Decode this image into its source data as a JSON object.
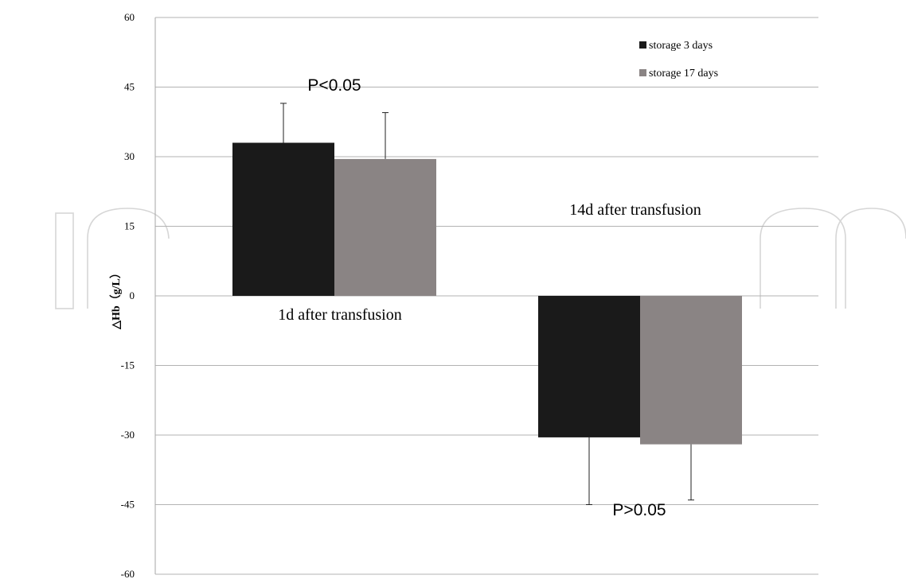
{
  "chart_data": {
    "type": "bar",
    "ylabel": "△Hb（g/L）",
    "ylim": [
      -60,
      60
    ],
    "yticks": [
      60,
      45,
      30,
      15,
      0,
      -15,
      -30,
      -45,
      -60
    ],
    "grid": true,
    "legend_position": "top-right",
    "categories": [
      "1d after transfusion",
      "14d after transfusion"
    ],
    "series": [
      {
        "name": "storage 3 days",
        "color": "#1a1a1a",
        "values": [
          33,
          -30.5
        ],
        "error": [
          8.5,
          14.5
        ]
      },
      {
        "name": "storage 17 days",
        "color": "#8a8484",
        "values": [
          29.5,
          -32
        ],
        "error": [
          10,
          12
        ]
      }
    ],
    "annotations": [
      "P<0.05",
      "P>0.05"
    ]
  }
}
